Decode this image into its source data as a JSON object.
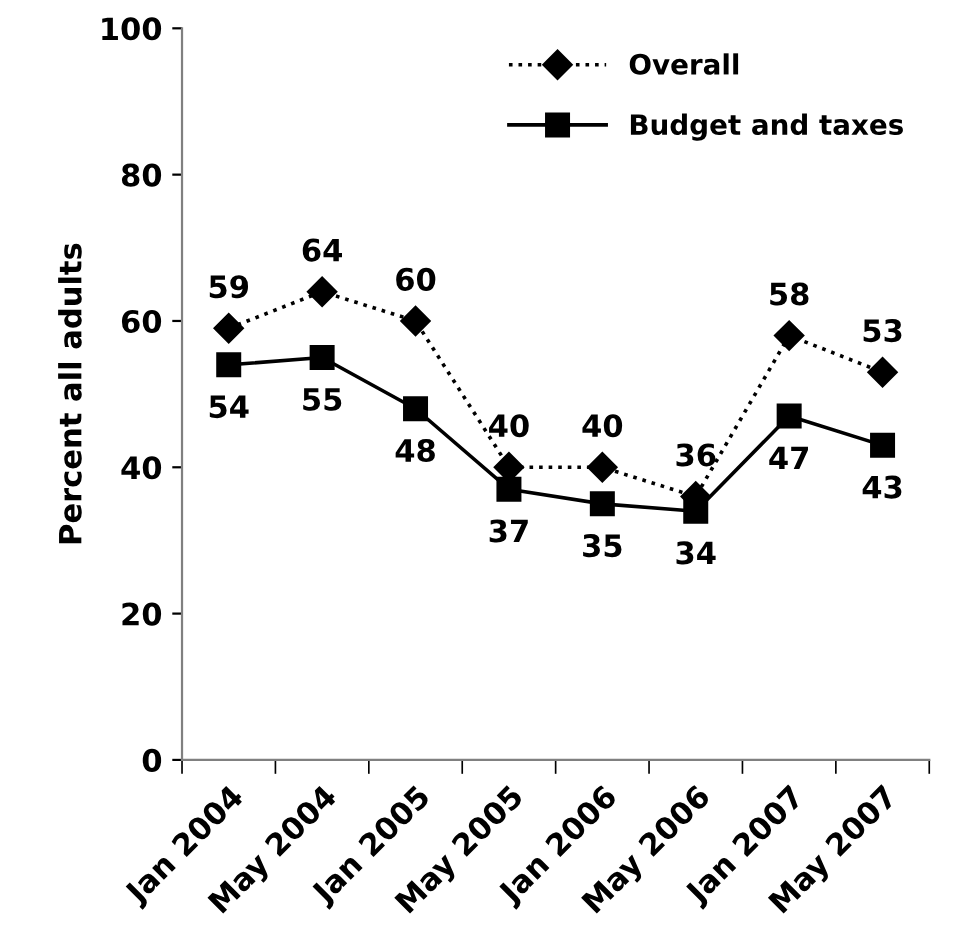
{
  "chart_data": {
    "type": "line",
    "ylabel": "Percent all adults",
    "categories": [
      "Jan 2004",
      "May 2004",
      "Jan 2005",
      "May 2005",
      "Jan 2006",
      "May 2006",
      "Jan 2007",
      "May 2007"
    ],
    "series": [
      {
        "name": "Overall",
        "color": "#000000",
        "values": [
          59,
          64,
          60,
          40,
          40,
          36,
          58,
          53
        ],
        "marker": "diamond",
        "line_style": "dotted"
      },
      {
        "name": "Budget and taxes",
        "color": "#000000",
        "values": [
          54,
          55,
          48,
          37,
          35,
          34,
          47,
          43
        ],
        "marker": "square",
        "line_style": "solid"
      }
    ],
    "ylim": [
      0,
      100
    ],
    "yticks": [
      0,
      20,
      40,
      60,
      80,
      100
    ],
    "grid": false,
    "legend": "top right",
    "data_labels": true
  }
}
